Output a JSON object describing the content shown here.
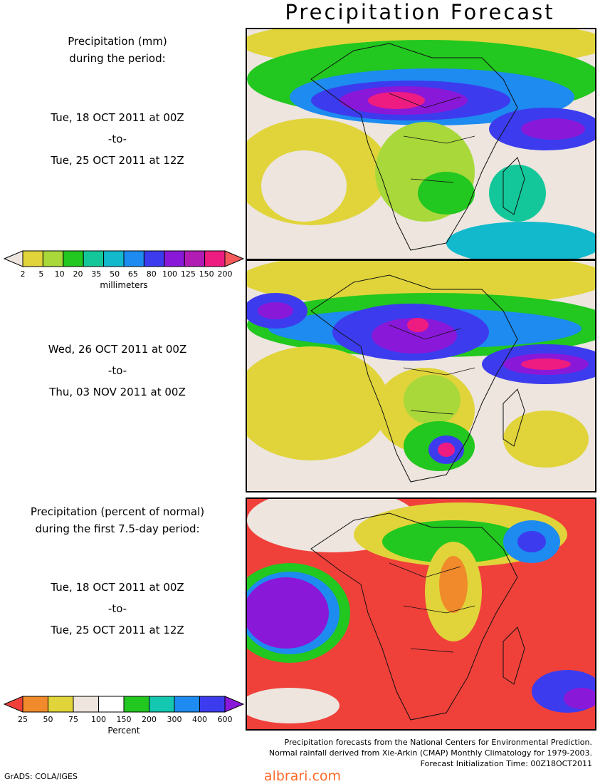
{
  "title": "Precipitation Forecast",
  "panel1": {
    "header_line1": "Precipitation (mm)",
    "header_line2": "during the period:",
    "start": "Tue, 18 OCT 2011 at 00Z",
    "to": "-to-",
    "end": "Tue, 25 OCT 2011 at 12Z"
  },
  "mm_scale": {
    "ticks": [
      "2",
      "5",
      "10",
      "20",
      "35",
      "50",
      "65",
      "80",
      "100",
      "125",
      "150",
      "200"
    ],
    "colors": [
      "#ede5de",
      "#e0d43a",
      "#a8d83a",
      "#22c71f",
      "#14c79a",
      "#12b9cc",
      "#1d8bf0",
      "#3c3cee",
      "#8a18d8",
      "#b01cb4",
      "#ee1c80",
      "#f55a5a"
    ],
    "unit": "millimeters"
  },
  "panel2": {
    "start": "Wed, 26 OCT 2011 at 00Z",
    "to": "-to-",
    "end": "Thu, 03 NOV 2011 at 00Z"
  },
  "panel3": {
    "header_line1": "Precipitation (percent of normal)",
    "header_line2": "during the first 7.5-day period:",
    "start": "Tue, 18 OCT 2011 at 00Z",
    "to": "-to-",
    "end": "Tue, 25 OCT 2011 at 12Z"
  },
  "pct_scale": {
    "ticks": [
      "25",
      "50",
      "75",
      "100",
      "150",
      "200",
      "300",
      "400",
      "600"
    ],
    "colors": [
      "#f0403a",
      "#f08a2a",
      "#e0d43a",
      "#ede5de",
      "#ffffff",
      "#22c71f",
      "#14c7b0",
      "#1d8bf0",
      "#3c3cee",
      "#8a18d8"
    ],
    "unit": "Percent"
  },
  "footer": {
    "line1": "Precipitation forecasts from the National Centers for Environmental Prediction.",
    "line2": "Normal rainfall derived from Xie-Arkin (CMAP) Monthly Climatology for 1979-2003.",
    "line3": "Forecast Initialization Time: 00Z18OCT2011",
    "credit": "GrADS: COLA/IGES",
    "watermark": "albrari.com"
  }
}
